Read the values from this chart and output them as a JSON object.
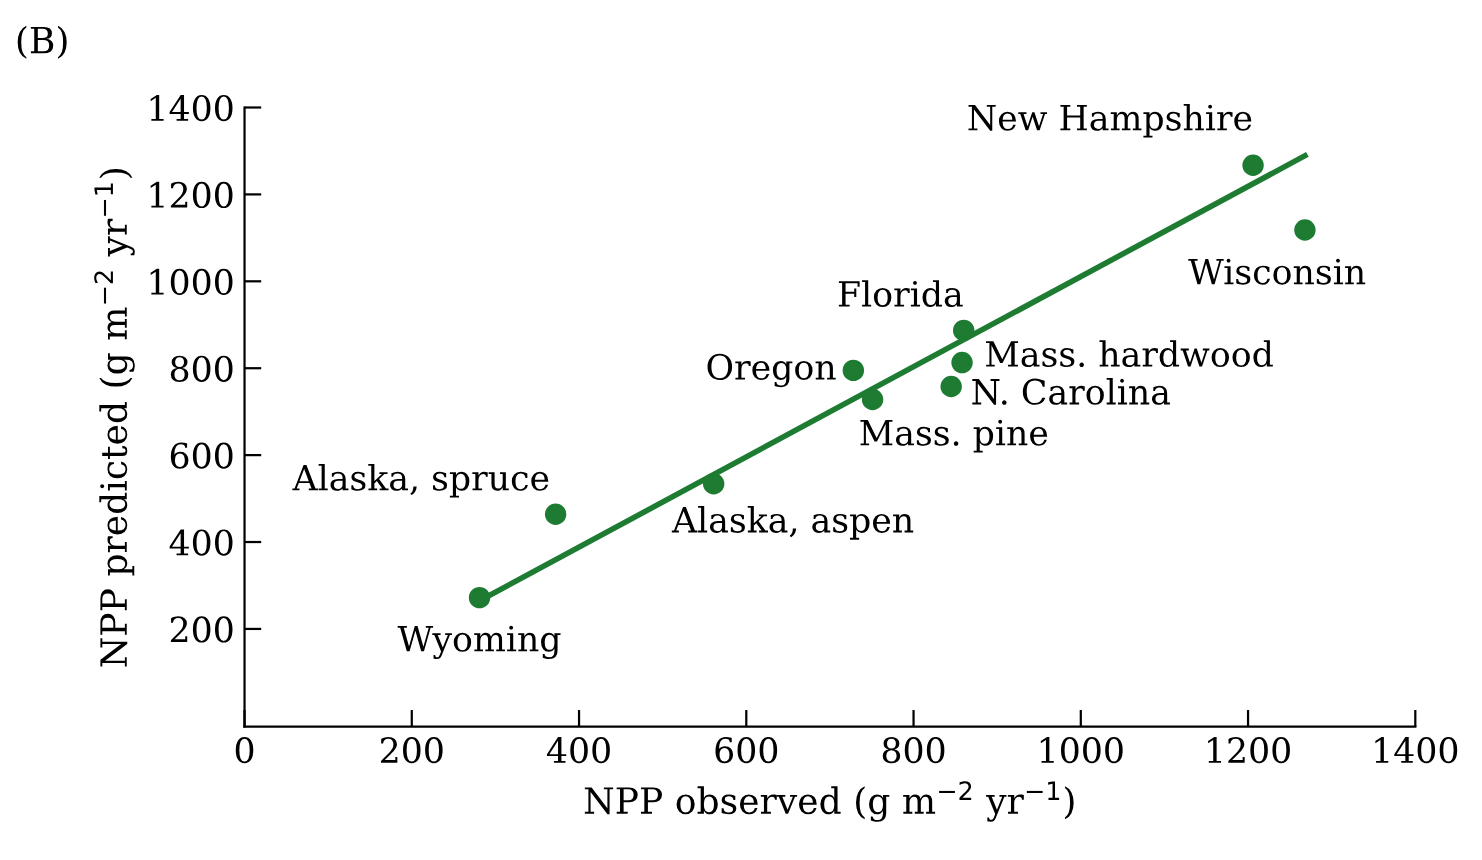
{
  "chart_data": {
    "type": "scatter",
    "title": "(B)",
    "xlabel": "NPP observed (g m$^{−2}$ yr$^{−1}$)",
    "ylabel": "NPP predicted (g m$^{−2}$ yr$^{−1}$)",
    "series": [
      {
        "color": "#1e7b32",
        "marker": "circle",
        "x": [
          281,
          372,
          561,
          728,
          751,
          860,
          858,
          845,
          1206,
          1268
        ],
        "values": [
          272,
          464,
          534,
          795,
          728,
          887,
          813,
          758,
          1267,
          1118
        ]
      },
      {
        "type": "line",
        "color": "#1e7b32",
        "marker": "none",
        "line_style": "solid",
        "x": [
          286,
          1268
        ],
        "values": [
          270,
          1289
        ]
      }
    ],
    "annotations": [
      {
        "text": "Wyoming",
        "x": 281,
        "y": 272
      },
      {
        "text": "Alaska, spruce",
        "x": 372,
        "y": 464
      },
      {
        "text": "Alaska, aspen",
        "x": 561,
        "y": 534
      },
      {
        "text": "Oregon",
        "x": 728,
        "y": 795
      },
      {
        "text": "Mass. pine",
        "x": 751,
        "y": 728
      },
      {
        "text": "Florida",
        "x": 860,
        "y": 887
      },
      {
        "text": "Mass. hardwood",
        "x": 858,
        "y": 813
      },
      {
        "text": "N. Carolina",
        "x": 845,
        "y": 758
      },
      {
        "text": "New Hampshire",
        "x": 1206,
        "y": 1267
      },
      {
        "text": "Wisconsin",
        "x": 1268,
        "y": 1118
      }
    ],
    "xlim": [
      0,
      1400
    ],
    "xticks": [
      0,
      200,
      400,
      600,
      800,
      1000,
      1200,
      1400
    ],
    "ylim": [
      -25,
      1400
    ],
    "yticks": [
      200,
      400,
      600,
      800,
      1000,
      1200,
      1400
    ],
    "grid": false,
    "legend": false
  }
}
